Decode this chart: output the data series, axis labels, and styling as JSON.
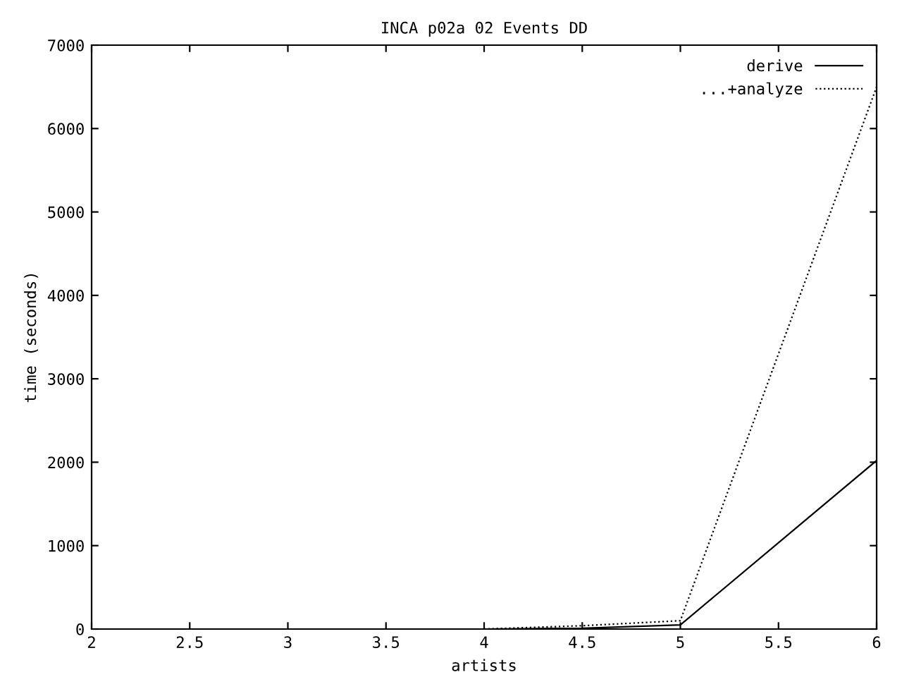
{
  "chart_data": {
    "type": "line",
    "title": "INCA p02a 02 Events DD",
    "xlabel": "artists",
    "ylabel": "time (seconds)",
    "x": [
      4,
      4.5,
      5,
      6
    ],
    "series": [
      {
        "name": "derive",
        "color": "#000000",
        "line_style": "solid",
        "values": [
          0,
          10,
          50,
          2020
        ]
      },
      {
        "name": "...+analyze",
        "color": "#000000",
        "line_style": "dotted",
        "values": [
          0,
          40,
          100,
          6500
        ]
      }
    ],
    "xlim": [
      2,
      6
    ],
    "xticks": [
      2,
      2.5,
      3,
      3.5,
      4,
      4.5,
      5,
      5.5,
      6
    ],
    "ylim": [
      0,
      7000
    ],
    "yticks": [
      0,
      1000,
      2000,
      3000,
      4000,
      5000,
      6000,
      7000
    ],
    "grid": false,
    "legend": "top right",
    "marker": "none"
  }
}
